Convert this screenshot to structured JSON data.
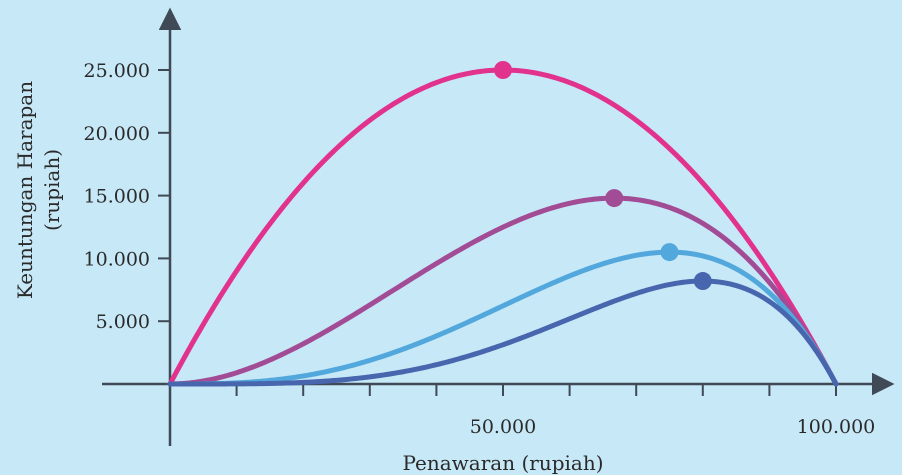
{
  "chart_data": {
    "type": "line",
    "xlabel": "Penawaran (rupiah)",
    "ylabel": [
      "Keuntungan Harapan",
      "(rupiah)"
    ],
    "xlim": [
      0,
      100000
    ],
    "ylim": [
      0,
      25000
    ],
    "x_ticks": [
      10000,
      20000,
      30000,
      40000,
      50000,
      60000,
      70000,
      80000,
      90000,
      100000
    ],
    "x_tick_labels": [
      {
        "value": 50000,
        "label": "50.000"
      },
      {
        "value": 100000,
        "label": "100.000"
      }
    ],
    "y_ticks": [
      {
        "value": 5000,
        "label": "5.000"
      },
      {
        "value": 10000,
        "label": "10.000"
      },
      {
        "value": 15000,
        "label": "15.000"
      },
      {
        "value": 20000,
        "label": "20.000"
      },
      {
        "value": 25000,
        "label": "25.000"
      }
    ],
    "grid": false,
    "legend": "none",
    "series": [
      {
        "color": "#e1338d",
        "power": 1,
        "max_point": {
          "x": 50000,
          "y": 25000
        }
      },
      {
        "color": "#a24c95",
        "power": 2,
        "max_point": {
          "x": 66700,
          "y": 14800
        }
      },
      {
        "color": "#52a8dc",
        "power": 3,
        "max_point": {
          "x": 75000,
          "y": 10500
        }
      },
      {
        "color": "#4866ae",
        "power": 4,
        "max_point": {
          "x": 80000,
          "y": 8200
        }
      }
    ],
    "axis_color": "#3f4a56"
  }
}
